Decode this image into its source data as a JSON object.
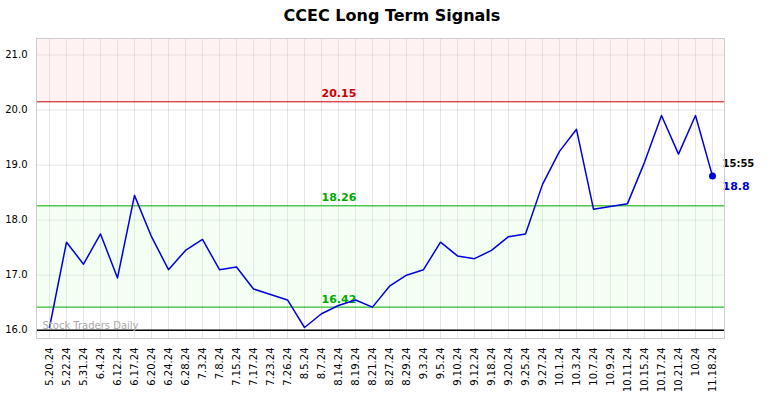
{
  "chart_data": {
    "type": "line",
    "title": "CCEC Long Term Signals",
    "categories": [
      "5.20.24",
      "5.22.24",
      "5.31.24",
      "6.4.24",
      "6.12.24",
      "6.17.24",
      "6.20.24",
      "6.24.24",
      "6.28.24",
      "7.3.24",
      "7.8.24",
      "7.15.24",
      "7.17.24",
      "7.23.24",
      "7.26.24",
      "8.5.24",
      "8.7.24",
      "8.14.24",
      "8.19.24",
      "8.21.24",
      "8.27.24",
      "8.29.24",
      "9.3.24",
      "9.5.24",
      "9.10.24",
      "9.12.24",
      "9.18.24",
      "9.20.24",
      "9.25.24",
      "9.27.24",
      "10.1.24",
      "10.3.24",
      "10.7.24",
      "10.9.24",
      "10.11.24",
      "10.15.24",
      "10.17.24",
      "10.21.24",
      "10.24",
      "11.18.24"
    ],
    "values": [
      16.05,
      17.6,
      17.2,
      17.75,
      16.95,
      18.45,
      17.7,
      17.1,
      17.45,
      17.65,
      17.1,
      17.15,
      16.75,
      16.65,
      16.55,
      16.05,
      16.3,
      16.45,
      16.55,
      16.42,
      16.8,
      17.0,
      17.1,
      17.6,
      17.35,
      17.3,
      17.45,
      17.7,
      17.75,
      18.65,
      19.25,
      19.65,
      18.2,
      18.25,
      18.3,
      19.05,
      19.9,
      19.2,
      19.9,
      18.8
    ],
    "color": "#0000dd",
    "ylim": [
      15.85,
      21.3
    ],
    "yticks": [
      16,
      17,
      18,
      19,
      20,
      21
    ],
    "grid": true,
    "hlines": [
      {
        "value": 20.15,
        "color": "#cc0000",
        "label": "20.15"
      },
      {
        "value": 18.26,
        "color": "#00aa00",
        "label": "18.26"
      },
      {
        "value": 16.42,
        "color": "#00aa00",
        "label": "16.42"
      },
      {
        "value": 16.0,
        "color": "#000000"
      }
    ],
    "bands": [
      {
        "from": 20.15,
        "to": 21.3,
        "color": "#ffcccc"
      },
      {
        "from": 16.42,
        "to": 18.26,
        "color": "#ccffcc"
      }
    ],
    "annotations": [
      "15:55",
      "18.8"
    ],
    "watermark": "Stock Traders Daily"
  }
}
